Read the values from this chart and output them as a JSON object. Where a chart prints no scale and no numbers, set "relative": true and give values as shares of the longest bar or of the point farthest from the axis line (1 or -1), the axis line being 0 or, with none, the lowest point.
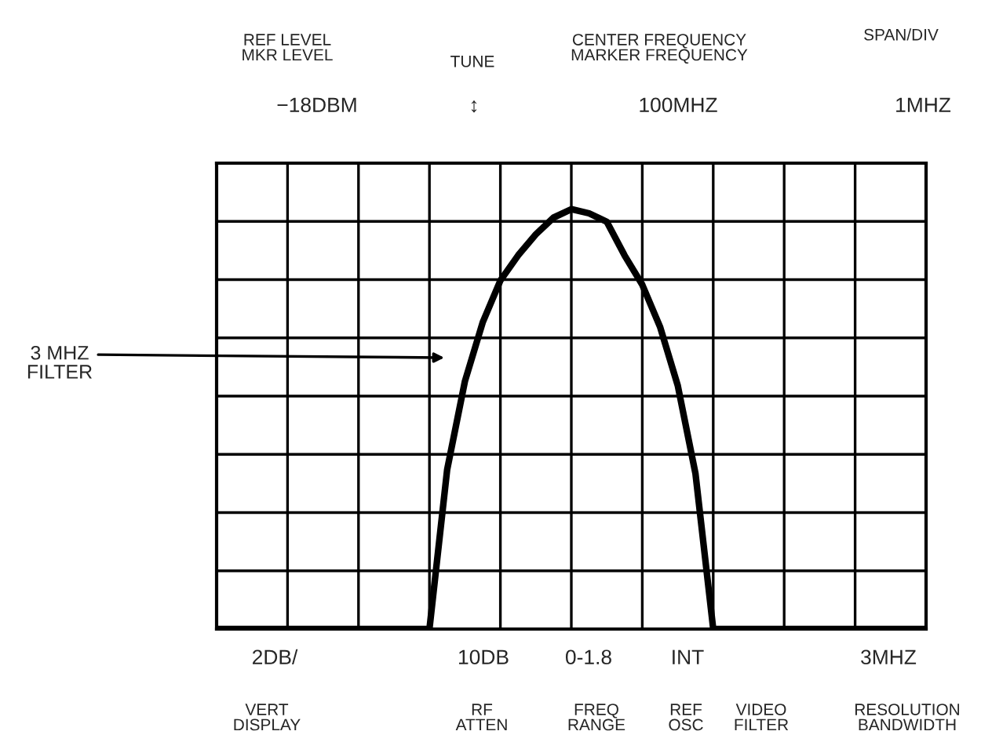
{
  "chart_data": {
    "type": "line",
    "relative": true,
    "grid": true,
    "marker": "none",
    "line_style": "solid",
    "categories": [
      null,
      null,
      null,
      null,
      null,
      null,
      null,
      null,
      null,
      null,
      null,
      null,
      null,
      null,
      null,
      null,
      null,
      null,
      null,
      null,
      null,
      null,
      null,
      null,
      null,
      null,
      null,
      null,
      null,
      null,
      null,
      null,
      null,
      null,
      null,
      null,
      null,
      null,
      null,
      null,
      null
    ],
    "series": [
      {
        "color": "#000000",
        "values": [
          0,
          0,
          0,
          0,
          0,
          0,
          0,
          0,
          0,
          0,
          0,
          0,
          0,
          0.38,
          0.59,
          0.73,
          0.83,
          0.89,
          0.94,
          0.98,
          1,
          0.99,
          0.97,
          0.89,
          0.82,
          0.72,
          0.58,
          0.37,
          0,
          0,
          0,
          0,
          0,
          0,
          0,
          0,
          0,
          0,
          0,
          0,
          0
        ]
      }
    ],
    "annotations": [
      "REF LEVEL\nMKR LEVEL",
      "TUNE",
      "CENTER FREQUENCY\nMARKER FREQUENCY",
      "SPAN/DIV",
      "−18DBM",
      "↕",
      "100MHZ",
      "1MHZ",
      "2DB/",
      "10DB",
      "0-1.8",
      "INT",
      "3MHZ",
      "VERT\nDISPLAY",
      "RF\nATTEN",
      "FREQ\nRANGE",
      "REF\nOSC",
      "VIDEO\nFILTER",
      "RESOLUTION\nBANDWIDTH",
      "3 MHZ\nFILTER"
    ]
  }
}
